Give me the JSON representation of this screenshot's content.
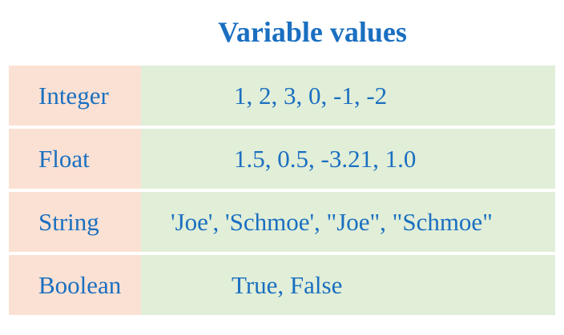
{
  "title": "Variable values",
  "rows": [
    {
      "type": "Integer",
      "values": "1, 2, 3, 0, -1, -2"
    },
    {
      "type": "Float",
      "values": "1.5, 0.5, -3.21, 1.0"
    },
    {
      "type": "String",
      "values": "'Joe', 'Schmoe', \"Joe\", \"Schmoe\""
    },
    {
      "type": "Boolean",
      "values": "True, False"
    }
  ],
  "colors": {
    "text": "#1a6fc0",
    "type_cell_bg": "#fbe1d3",
    "value_cell_bg": "#e1eed8"
  }
}
